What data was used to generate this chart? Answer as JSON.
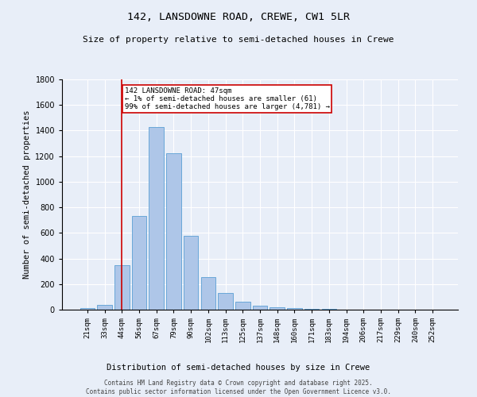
{
  "title_line1": "142, LANSDOWNE ROAD, CREWE, CW1 5LR",
  "title_line2": "Size of property relative to semi-detached houses in Crewe",
  "xlabel": "Distribution of semi-detached houses by size in Crewe",
  "ylabel": "Number of semi-detached properties",
  "categories": [
    "21sqm",
    "33sqm",
    "44sqm",
    "56sqm",
    "67sqm",
    "79sqm",
    "90sqm",
    "102sqm",
    "113sqm",
    "125sqm",
    "137sqm",
    "148sqm",
    "160sqm",
    "171sqm",
    "183sqm",
    "194sqm",
    "206sqm",
    "217sqm",
    "229sqm",
    "240sqm",
    "252sqm"
  ],
  "values": [
    10,
    35,
    350,
    735,
    1430,
    1220,
    580,
    255,
    130,
    65,
    28,
    20,
    10,
    8,
    5,
    3,
    2,
    0,
    0,
    2,
    1
  ],
  "bar_color": "#aec6e8",
  "bar_edge_color": "#5a9fd4",
  "vline_x": 2,
  "vline_color": "#cc0000",
  "annotation_text": "142 LANSDOWNE ROAD: 47sqm\n← 1% of semi-detached houses are smaller (61)\n99% of semi-detached houses are larger (4,781) →",
  "annotation_box_color": "#ffffff",
  "annotation_box_edge": "#cc0000",
  "ylim": [
    0,
    1800
  ],
  "yticks": [
    0,
    200,
    400,
    600,
    800,
    1000,
    1200,
    1400,
    1600,
    1800
  ],
  "footer_line1": "Contains HM Land Registry data © Crown copyright and database right 2025.",
  "footer_line2": "Contains public sector information licensed under the Open Government Licence v3.0.",
  "bg_color": "#e8eef8",
  "plot_bg_color": "#e8eef8",
  "grid_color": "#ffffff"
}
